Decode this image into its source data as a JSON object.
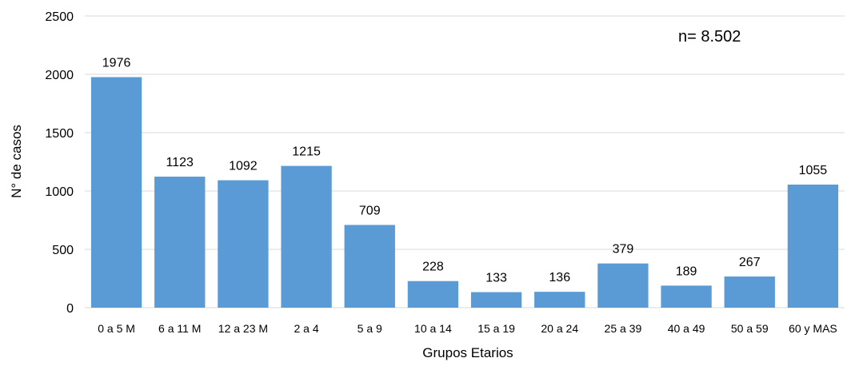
{
  "chart_data": {
    "type": "bar",
    "categories": [
      "0 a 5 M",
      "6 a 11 M",
      "12 a 23 M",
      "2 a 4",
      "5 a 9",
      "10 a 14",
      "15 a 19",
      "20 a 24",
      "25 a 39",
      "40 a 49",
      "50 a 59",
      "60 y MAS"
    ],
    "values": [
      1976,
      1123,
      1092,
      1215,
      709,
      228,
      133,
      136,
      379,
      189,
      267,
      1055
    ],
    "title": "",
    "xlabel": "Grupos Etarios",
    "ylabel": "N° de casos",
    "ylim": [
      0,
      2500
    ],
    "yticks": [
      0,
      500,
      1000,
      1500,
      2000,
      2500
    ],
    "annotation": "n= 8.502",
    "bar_color": "#5b9bd5",
    "grid": true,
    "legend": "none"
  }
}
